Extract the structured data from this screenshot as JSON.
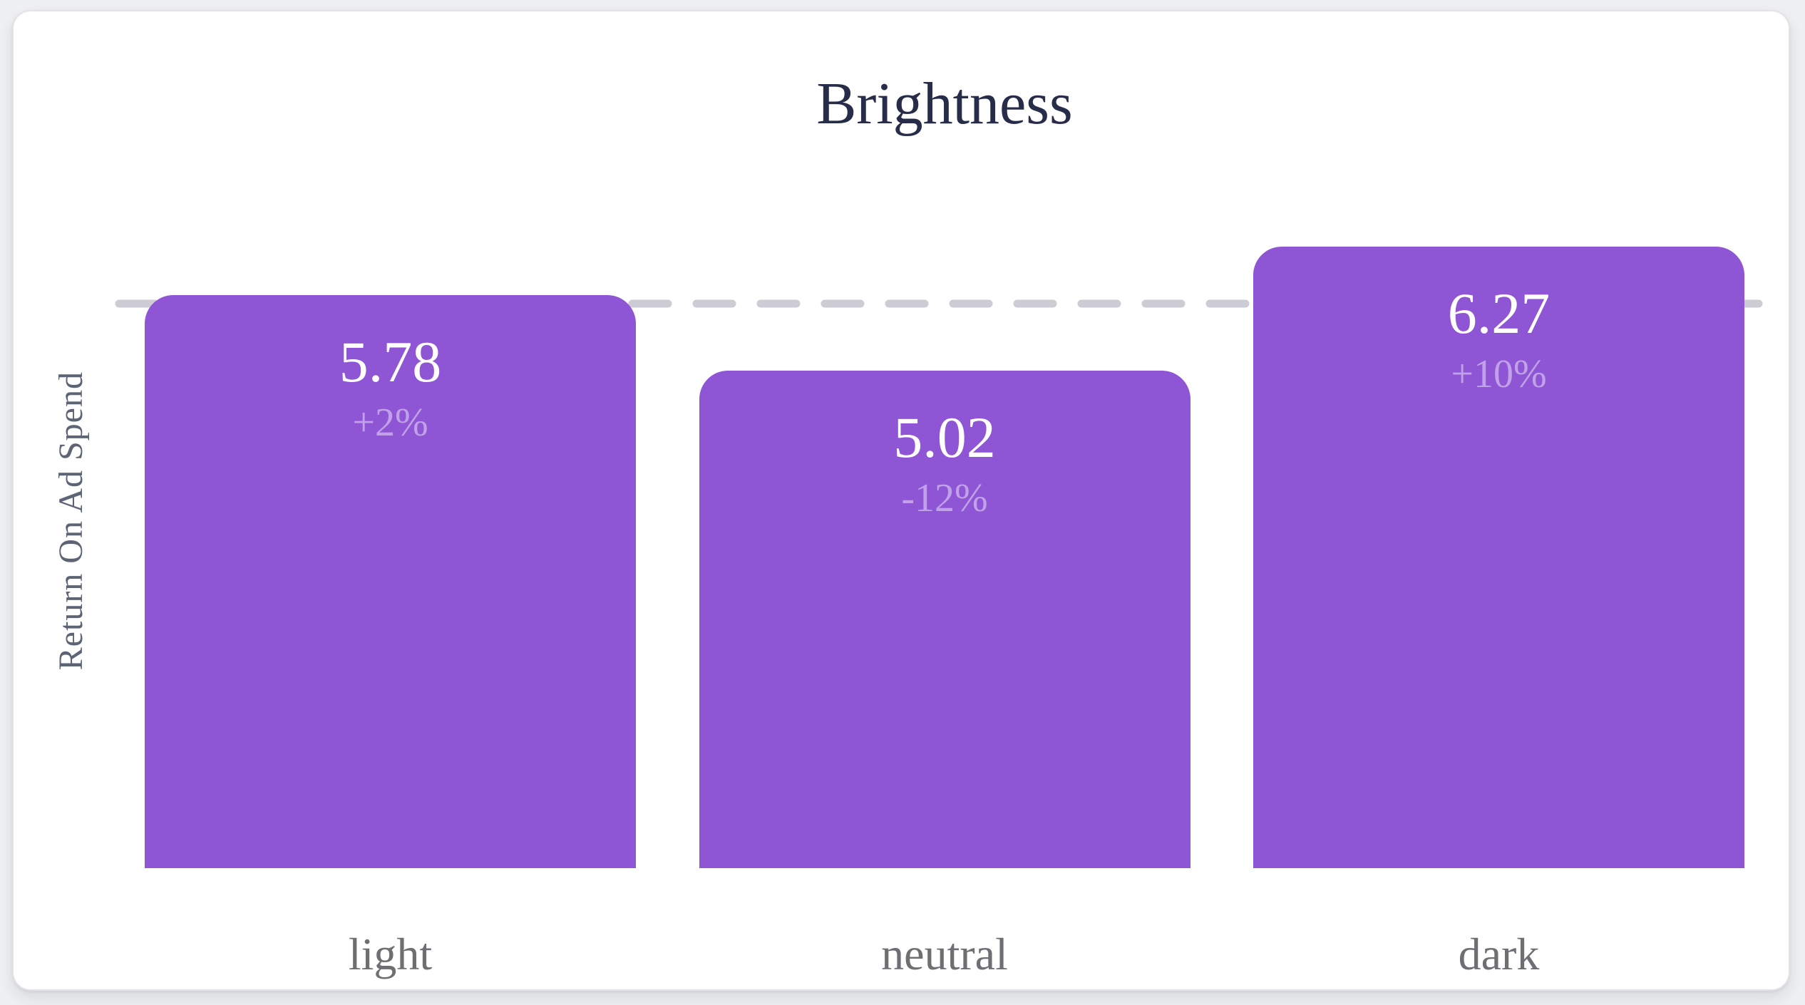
{
  "page": {
    "background": "#eff0f2",
    "card_background": "#ffffff"
  },
  "chart_data": {
    "type": "bar",
    "title": "Brightness",
    "xlabel": "",
    "ylabel": "Return On Ad Spend",
    "categories": [
      "light",
      "neutral",
      "dark"
    ],
    "values": [
      5.78,
      5.02,
      6.27
    ],
    "value_labels": [
      "5.78",
      "5.02",
      "6.27"
    ],
    "delta_labels": [
      "+2%",
      "-12%",
      "+10%"
    ],
    "average_line_value": 5.69,
    "ylim": [
      0,
      7
    ],
    "grid": false,
    "legend": false,
    "bar_color": "#8e55d4",
    "value_text_color": "#ffffff",
    "delta_text_color": "rgba(255,255,255,0.45)",
    "title_color": "#272c49",
    "ylabel_color": "#5d6474",
    "category_label_color": "#6e6e73",
    "dash_line_color": "#cdccd4"
  }
}
